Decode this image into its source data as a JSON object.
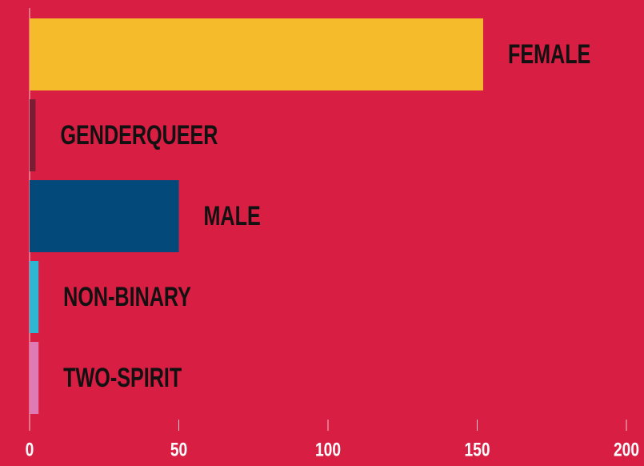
{
  "chart_data": {
    "type": "barh",
    "categories": [
      "FEMALE",
      "GENDERQUEER",
      "MALE",
      "NON-BINARY",
      "TWO-SPIRIT"
    ],
    "values": [
      152,
      2,
      50,
      3,
      3
    ],
    "colors": [
      "#f5bb2a",
      "#7b1e34",
      "#034a7b",
      "#2db7d3",
      "#e07ab5"
    ],
    "xlim": [
      0,
      200
    ],
    "xticks": [
      0,
      50,
      100,
      150,
      200
    ],
    "grid": false
  }
}
